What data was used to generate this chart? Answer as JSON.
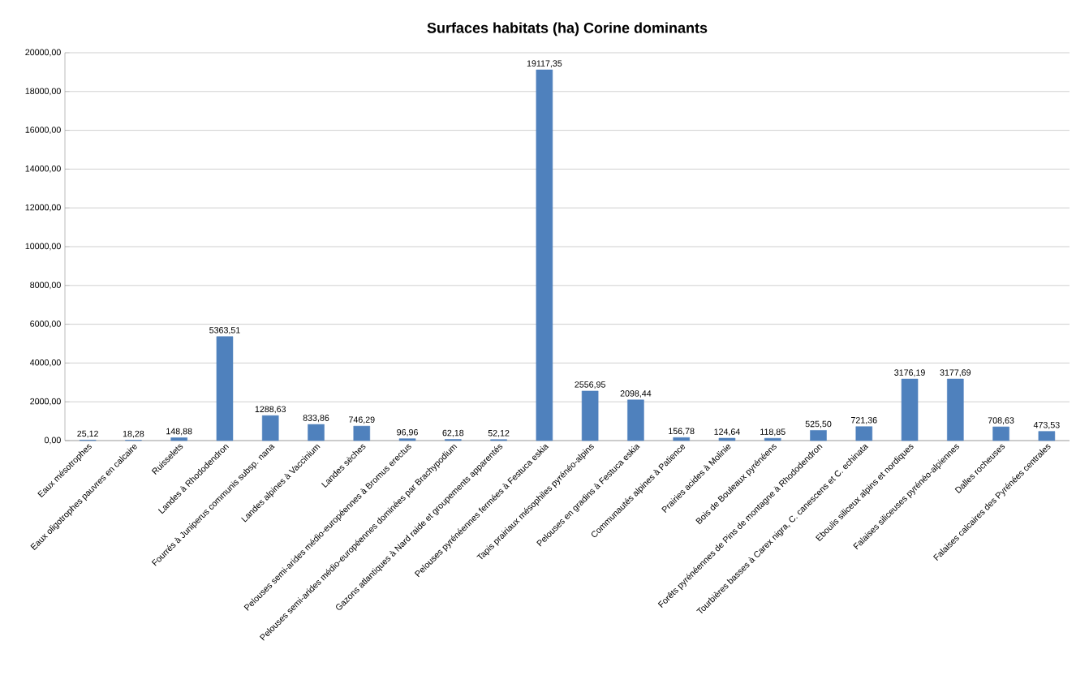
{
  "chart_data": {
    "type": "bar",
    "title": "Surfaces habitats (ha) Corine dominants",
    "categories": [
      "Eaux mésotrophes",
      "Eaux oligotrophes pauvres en calcaire",
      "Ruisselets",
      "Landes à Rhododendron",
      "Fourrés à Juniperus communis subsp. nana",
      "Landes alpines à Vaccinium",
      "Landes sèches",
      "Pelouses semi-arides médio-européennes à Bromus erectus",
      "Pelouses semi-arides médio-européennes dominées par Brachypodium",
      "Gazons atlantiques à Nard raide et groupements apparentés",
      "Pelouses pyrénéennes fermées à Festuca eskia",
      "Tapis prairiaux mésophiles pyrénéo-alpins",
      "Pelouses en gradins à Festuca eskia",
      "Communautés alpines à Patience",
      "Prairies acides à Molinie",
      "Bois de Bouleaux pyrénéens",
      "Forêts pyrénéennes de Pins de montagne à Rhododendron",
      "Tourbières basses à Carex nigra, C. canescens et C. echinata",
      "Eboulis siliceux alpins et nordiques",
      "Falaises siliceuses pyrénéo-alpiennes",
      "Dalles rocheuses",
      "Falaises calcaires des Pyrénées centrales"
    ],
    "values": [
      25.12,
      18.28,
      148.88,
      5363.51,
      1288.63,
      833.86,
      746.29,
      96.96,
      62.18,
      52.12,
      19117.35,
      2556.95,
      2098.44,
      156.78,
      124.64,
      118.85,
      525.5,
      721.36,
      3176.19,
      3177.69,
      708.63,
      473.53
    ],
    "value_labels": [
      "25,12",
      "18,28",
      "148,88",
      "5363,51",
      "1288,63",
      "833,86",
      "746,29",
      "96,96",
      "62,18",
      "52,12",
      "19117,35",
      "2556,95",
      "2098,44",
      "156,78",
      "124,64",
      "118,85",
      "525,50",
      "721,36",
      "3176,19",
      "3177,69",
      "708,63",
      "473,53"
    ],
    "color": "#4f81bd",
    "ylim": [
      0,
      20000
    ],
    "yticks": [
      {
        "value": 0,
        "label": "0,00"
      },
      {
        "value": 2000,
        "label": "2000,00"
      },
      {
        "value": 4000,
        "label": "4000,00"
      },
      {
        "value": 6000,
        "label": "6000,00"
      },
      {
        "value": 8000,
        "label": "8000,00"
      },
      {
        "value": 10000,
        "label": "10000,00"
      },
      {
        "value": 12000,
        "label": "12000,00"
      },
      {
        "value": 14000,
        "label": "14000,00"
      },
      {
        "value": 16000,
        "label": "16000,00"
      },
      {
        "value": 18000,
        "label": "18000,00"
      },
      {
        "value": 20000,
        "label": "20000,00"
      }
    ],
    "grid": "y"
  }
}
